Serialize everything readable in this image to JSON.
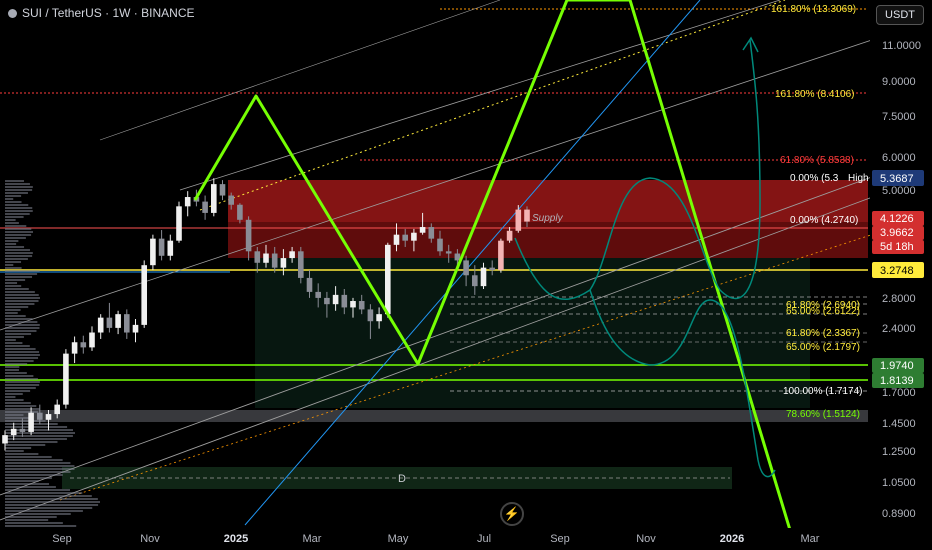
{
  "header": {
    "symbol": "SUI / TetherUS · 1W · BINANCE"
  },
  "currency_button": "USDT",
  "colors": {
    "up": "#ffffff",
    "down": "#787b86",
    "zigzag": "#76ff03",
    "supply": "#b71c1c",
    "fib_orange": "#ff9800",
    "fib_red": "#ff3b3b",
    "teal": "#00897b",
    "blue": "#2196f3"
  },
  "chart_data": {
    "type": "candlestick",
    "x_tick_labels": [
      "Sep",
      "Nov",
      "2025",
      "Mar",
      "May",
      "Jul",
      "Sep",
      "Nov",
      "2026",
      "Mar"
    ],
    "y_tick_labels": [
      "11.0000",
      "9.0000",
      "7.5000",
      "6.0000",
      "5.0000",
      "2.8000",
      "2.4000",
      "1.7000",
      "1.4500",
      "1.2500",
      "1.0500",
      "0.8900"
    ],
    "y_scale": "log",
    "price_tags": [
      {
        "label": "5.3687",
        "style": "high"
      },
      {
        "label": "4.1226",
        "style": "last"
      },
      {
        "label": "3.9662",
        "style": "last"
      },
      {
        "label": "5d 18h",
        "style": "last"
      },
      {
        "label": "3.2748",
        "style": "yellow"
      },
      {
        "label": "1.9740",
        "style": "green"
      },
      {
        "label": "1.8139",
        "style": "green"
      }
    ],
    "high_marker": "High",
    "fib_labels": [
      {
        "text": "161.80% (13.3069)",
        "color": "yellow",
        "price": 13.3069
      },
      {
        "text": "161.80% (8.4106)",
        "color": "yellow",
        "price": 8.4106
      },
      {
        "text": "61.80% (5.8538)",
        "color": "red",
        "price": 5.8538
      },
      {
        "text": "0.00% (5.3",
        "color": "white",
        "price": 5.37
      },
      {
        "text": "0.00% (4.2740)",
        "color": "white",
        "price": 4.274
      },
      {
        "text": "61.80% (2.6940)",
        "color": "yellow",
        "price": 2.694
      },
      {
        "text": "65.00% (2.6122)",
        "color": "yellow",
        "price": 2.6122
      },
      {
        "text": "61.80% (2.3367)",
        "color": "yellow",
        "price": 2.3367
      },
      {
        "text": "65.00% (2.1797)",
        "color": "yellow",
        "price": 2.1797
      },
      {
        "text": "100.00% (1.7174)",
        "color": "white",
        "price": 1.7174
      },
      {
        "text": "78.60% (1.5124)",
        "color": "green",
        "price": 1.5124
      }
    ],
    "annotations": [
      "Supply",
      "D"
    ],
    "candles": [
      {
        "o": 0.82,
        "h": 0.9,
        "l": 0.78,
        "c": 0.87
      },
      {
        "o": 0.87,
        "h": 0.95,
        "l": 0.84,
        "c": 0.91
      },
      {
        "o": 0.91,
        "h": 0.98,
        "l": 0.86,
        "c": 0.89
      },
      {
        "o": 0.89,
        "h": 1.06,
        "l": 0.87,
        "c": 1.02
      },
      {
        "o": 1.02,
        "h": 1.08,
        "l": 0.94,
        "c": 0.97
      },
      {
        "o": 0.97,
        "h": 1.04,
        "l": 0.9,
        "c": 1.01
      },
      {
        "o": 1.01,
        "h": 1.12,
        "l": 0.98,
        "c": 1.08
      },
      {
        "o": 1.08,
        "h": 1.6,
        "l": 1.05,
        "c": 1.55
      },
      {
        "o": 1.55,
        "h": 1.75,
        "l": 1.45,
        "c": 1.68
      },
      {
        "o": 1.68,
        "h": 1.76,
        "l": 1.55,
        "c": 1.62
      },
      {
        "o": 1.62,
        "h": 1.88,
        "l": 1.58,
        "c": 1.8
      },
      {
        "o": 1.8,
        "h": 2.05,
        "l": 1.72,
        "c": 2.0
      },
      {
        "o": 2.0,
        "h": 2.22,
        "l": 1.8,
        "c": 1.86
      },
      {
        "o": 1.86,
        "h": 2.1,
        "l": 1.78,
        "c": 2.05
      },
      {
        "o": 2.05,
        "h": 2.12,
        "l": 1.72,
        "c": 1.8
      },
      {
        "o": 1.8,
        "h": 1.98,
        "l": 1.68,
        "c": 1.9
      },
      {
        "o": 1.9,
        "h": 3.0,
        "l": 1.86,
        "c": 2.9
      },
      {
        "o": 2.9,
        "h": 3.6,
        "l": 2.8,
        "c": 3.5
      },
      {
        "o": 3.5,
        "h": 3.72,
        "l": 3.0,
        "c": 3.1
      },
      {
        "o": 3.1,
        "h": 3.6,
        "l": 3.0,
        "c": 3.45
      },
      {
        "o": 3.45,
        "h": 4.55,
        "l": 3.4,
        "c": 4.4
      },
      {
        "o": 4.4,
        "h": 4.9,
        "l": 4.1,
        "c": 4.7
      },
      {
        "o": 4.7,
        "h": 4.95,
        "l": 4.4,
        "c": 4.55
      },
      {
        "o": 4.55,
        "h": 4.75,
        "l": 4.0,
        "c": 4.2
      },
      {
        "o": 4.2,
        "h": 5.37,
        "l": 4.1,
        "c": 5.15
      },
      {
        "o": 5.15,
        "h": 5.3,
        "l": 4.6,
        "c": 4.75
      },
      {
        "o": 4.75,
        "h": 4.85,
        "l": 4.3,
        "c": 4.45
      },
      {
        "o": 4.45,
        "h": 4.5,
        "l": 3.9,
        "c": 4.0
      },
      {
        "o": 4.0,
        "h": 4.1,
        "l": 3.0,
        "c": 3.2
      },
      {
        "o": 3.2,
        "h": 3.3,
        "l": 2.75,
        "c": 2.95
      },
      {
        "o": 2.95,
        "h": 3.35,
        "l": 2.85,
        "c": 3.15
      },
      {
        "o": 3.15,
        "h": 3.3,
        "l": 2.75,
        "c": 2.85
      },
      {
        "o": 2.85,
        "h": 3.25,
        "l": 2.7,
        "c": 3.05
      },
      {
        "o": 3.05,
        "h": 3.3,
        "l": 2.95,
        "c": 3.2
      },
      {
        "o": 3.2,
        "h": 3.3,
        "l": 2.55,
        "c": 2.65
      },
      {
        "o": 2.65,
        "h": 2.8,
        "l": 2.3,
        "c": 2.4
      },
      {
        "o": 2.4,
        "h": 2.55,
        "l": 2.15,
        "c": 2.3
      },
      {
        "o": 2.3,
        "h": 2.4,
        "l": 2.0,
        "c": 2.2
      },
      {
        "o": 2.2,
        "h": 2.5,
        "l": 2.1,
        "c": 2.35
      },
      {
        "o": 2.35,
        "h": 2.45,
        "l": 2.05,
        "c": 2.15
      },
      {
        "o": 2.15,
        "h": 2.3,
        "l": 2.0,
        "c": 2.25
      },
      {
        "o": 2.25,
        "h": 2.35,
        "l": 2.05,
        "c": 2.12
      },
      {
        "o": 2.12,
        "h": 2.2,
        "l": 1.72,
        "c": 1.95
      },
      {
        "o": 1.95,
        "h": 2.15,
        "l": 1.85,
        "c": 2.05
      },
      {
        "o": 2.05,
        "h": 3.4,
        "l": 2.0,
        "c": 3.35
      },
      {
        "o": 3.35,
        "h": 3.9,
        "l": 3.2,
        "c": 3.6
      },
      {
        "o": 3.6,
        "h": 3.75,
        "l": 3.3,
        "c": 3.45
      },
      {
        "o": 3.45,
        "h": 3.75,
        "l": 3.2,
        "c": 3.65
      },
      {
        "o": 3.65,
        "h": 4.2,
        "l": 3.6,
        "c": 3.8
      },
      {
        "o": 3.8,
        "h": 3.9,
        "l": 3.4,
        "c": 3.5
      },
      {
        "o": 3.5,
        "h": 3.7,
        "l": 3.1,
        "c": 3.2
      },
      {
        "o": 3.2,
        "h": 3.35,
        "l": 2.95,
        "c": 3.15
      },
      {
        "o": 3.15,
        "h": 3.25,
        "l": 2.85,
        "c": 3.0
      },
      {
        "o": 3.0,
        "h": 3.1,
        "l": 2.5,
        "c": 2.7
      },
      {
        "o": 2.7,
        "h": 2.9,
        "l": 2.35,
        "c": 2.5
      },
      {
        "o": 2.5,
        "h": 2.95,
        "l": 2.45,
        "c": 2.85
      },
      {
        "o": 2.85,
        "h": 3.0,
        "l": 2.7,
        "c": 2.8
      },
      {
        "o": 2.8,
        "h": 3.5,
        "l": 2.75,
        "c": 3.45
      },
      {
        "o": 3.45,
        "h": 3.8,
        "l": 3.4,
        "c": 3.7
      },
      {
        "o": 3.7,
        "h": 4.44,
        "l": 3.65,
        "c": 4.3
      },
      {
        "o": 4.3,
        "h": 4.4,
        "l": 3.8,
        "c": 3.95
      }
    ]
  }
}
